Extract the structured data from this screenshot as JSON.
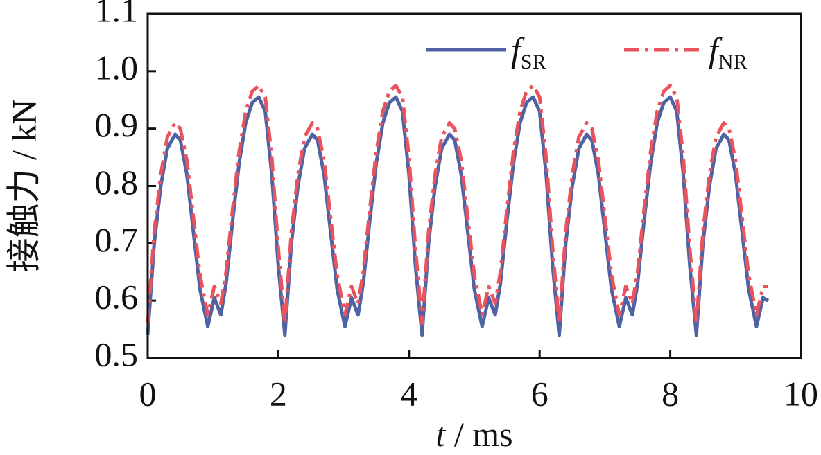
{
  "chart_data": {
    "type": "line",
    "x_label": "t / ms",
    "y_label": "接触力 / kN",
    "x": [
      0,
      0.1,
      0.2,
      0.3,
      0.42,
      0.5,
      0.6,
      0.7,
      0.8,
      0.92,
      1.02,
      1.12,
      1.2,
      1.3,
      1.4,
      1.5,
      1.6,
      1.7,
      1.8,
      1.9,
      2.0,
      2.1,
      2.2,
      2.3,
      2.4,
      2.52,
      2.6,
      2.7,
      2.8,
      2.9,
      3.02,
      3.12,
      3.22,
      3.3,
      3.4,
      3.5,
      3.6,
      3.7,
      3.8,
      3.9,
      4.0,
      4.1,
      4.2,
      4.3,
      4.4,
      4.5,
      4.62,
      4.7,
      4.8,
      4.9,
      5.0,
      5.12,
      5.22,
      5.32,
      5.4,
      5.5,
      5.6,
      5.7,
      5.8,
      5.9,
      6.0,
      6.1,
      6.2,
      6.3,
      6.4,
      6.5,
      6.6,
      6.72,
      6.8,
      6.9,
      7.0,
      7.1,
      7.22,
      7.32,
      7.42,
      7.5,
      7.6,
      7.7,
      7.8,
      7.9,
      8.0,
      8.1,
      8.2,
      8.3,
      8.4,
      8.5,
      8.6,
      8.7,
      8.82,
      8.9,
      9.0,
      9.1,
      9.2,
      9.32,
      9.42,
      9.5
    ],
    "series": [
      {
        "name": "fSR",
        "color": "#4f62a3",
        "dash": "solid",
        "values": [
          0.54,
          0.7,
          0.8,
          0.865,
          0.89,
          0.88,
          0.82,
          0.72,
          0.62,
          0.555,
          0.605,
          0.575,
          0.63,
          0.74,
          0.84,
          0.91,
          0.945,
          0.955,
          0.93,
          0.82,
          0.66,
          0.54,
          0.7,
          0.8,
          0.865,
          0.89,
          0.88,
          0.82,
          0.72,
          0.62,
          0.555,
          0.605,
          0.575,
          0.63,
          0.74,
          0.84,
          0.91,
          0.945,
          0.955,
          0.93,
          0.82,
          0.66,
          0.54,
          0.7,
          0.8,
          0.865,
          0.89,
          0.88,
          0.82,
          0.72,
          0.62,
          0.555,
          0.605,
          0.575,
          0.63,
          0.74,
          0.84,
          0.91,
          0.945,
          0.955,
          0.93,
          0.82,
          0.66,
          0.54,
          0.7,
          0.8,
          0.865,
          0.89,
          0.88,
          0.82,
          0.72,
          0.62,
          0.555,
          0.605,
          0.575,
          0.63,
          0.74,
          0.84,
          0.91,
          0.945,
          0.955,
          0.93,
          0.82,
          0.66,
          0.54,
          0.7,
          0.8,
          0.865,
          0.89,
          0.88,
          0.82,
          0.72,
          0.62,
          0.555,
          0.605,
          0.6
        ]
      },
      {
        "name": "fNR",
        "color": "#e8535d",
        "dash": "dashdot",
        "values": [
          0.56,
          0.72,
          0.82,
          0.885,
          0.91,
          0.9,
          0.845,
          0.745,
          0.645,
          0.575,
          0.625,
          0.595,
          0.65,
          0.76,
          0.86,
          0.93,
          0.965,
          0.975,
          0.955,
          0.85,
          0.69,
          0.56,
          0.72,
          0.82,
          0.885,
          0.91,
          0.9,
          0.845,
          0.745,
          0.645,
          0.575,
          0.625,
          0.595,
          0.65,
          0.76,
          0.86,
          0.93,
          0.965,
          0.975,
          0.955,
          0.85,
          0.69,
          0.56,
          0.72,
          0.82,
          0.885,
          0.91,
          0.9,
          0.845,
          0.745,
          0.645,
          0.575,
          0.625,
          0.595,
          0.65,
          0.76,
          0.86,
          0.93,
          0.965,
          0.975,
          0.955,
          0.85,
          0.69,
          0.56,
          0.72,
          0.82,
          0.885,
          0.91,
          0.9,
          0.845,
          0.745,
          0.645,
          0.575,
          0.625,
          0.595,
          0.65,
          0.76,
          0.86,
          0.93,
          0.965,
          0.975,
          0.955,
          0.85,
          0.69,
          0.56,
          0.72,
          0.82,
          0.885,
          0.91,
          0.9,
          0.845,
          0.745,
          0.645,
          0.575,
          0.625,
          0.625
        ]
      }
    ],
    "xlim": [
      0,
      10
    ],
    "xticks": [
      0,
      2,
      4,
      6,
      8,
      10
    ],
    "ylim": [
      0.5,
      1.1
    ],
    "yticks": [
      0.5,
      0.6,
      0.7,
      0.8,
      0.9,
      {
        "value": 1,
        "label": "1.0"
      },
      1.1
    ],
    "legend": "upper right"
  }
}
